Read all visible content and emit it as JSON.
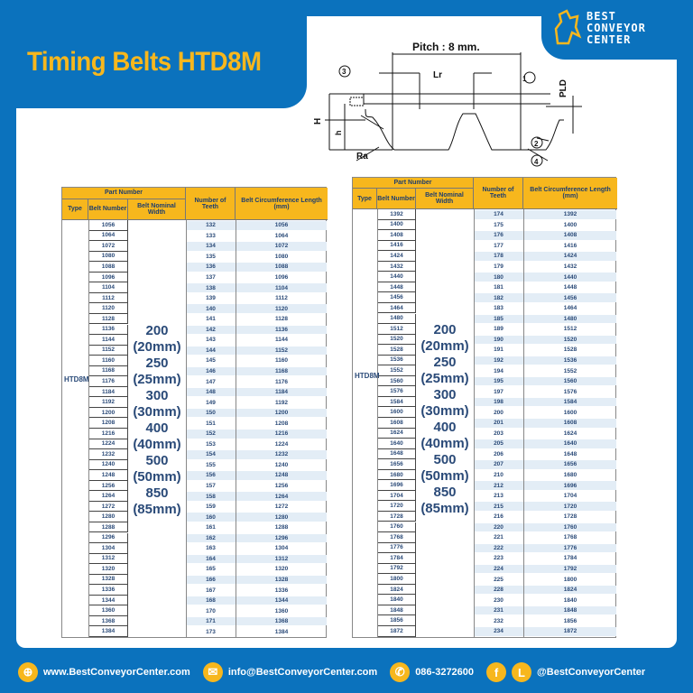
{
  "title": "Timing Belts HTD8M",
  "logo": {
    "line1": "BEST",
    "line2": "CONVEYOR",
    "line3": "CENTER"
  },
  "diagram": {
    "pitch": "Pitch : 8 mm.",
    "lr": "Lr",
    "pld": "PLD",
    "h_upper": "H",
    "h_lower": "h",
    "ra": "Ra",
    "callouts": [
      "1",
      "2",
      "3",
      "4"
    ]
  },
  "table_headers": {
    "part_number": "Part Number",
    "type": "Type",
    "belt_number": "Belt Number",
    "nominal_width": "Belt Nominal Width",
    "teeth": "Number of Teeth",
    "length": "Belt Circumference Length (mm)"
  },
  "type": "HTD8M",
  "widths": [
    "200",
    "(20mm)",
    "250",
    "(25mm)",
    "300",
    "(30mm)",
    "400",
    "(40mm)",
    "500",
    "(50mm)",
    "850",
    "(85mm)"
  ],
  "left_rows": [
    [
      "1056",
      "132",
      "1056"
    ],
    [
      "1064",
      "133",
      "1064"
    ],
    [
      "1072",
      "134",
      "1072"
    ],
    [
      "1080",
      "135",
      "1080"
    ],
    [
      "1088",
      "136",
      "1088"
    ],
    [
      "1096",
      "137",
      "1096"
    ],
    [
      "1104",
      "138",
      "1104"
    ],
    [
      "1112",
      "139",
      "1112"
    ],
    [
      "1120",
      "140",
      "1120"
    ],
    [
      "1128",
      "141",
      "1128"
    ],
    [
      "1136",
      "142",
      "1136"
    ],
    [
      "1144",
      "143",
      "1144"
    ],
    [
      "1152",
      "144",
      "1152"
    ],
    [
      "1160",
      "145",
      "1160"
    ],
    [
      "1168",
      "146",
      "1168"
    ],
    [
      "1176",
      "147",
      "1176"
    ],
    [
      "1184",
      "148",
      "1184"
    ],
    [
      "1192",
      "149",
      "1192"
    ],
    [
      "1200",
      "150",
      "1200"
    ],
    [
      "1208",
      "151",
      "1208"
    ],
    [
      "1216",
      "152",
      "1216"
    ],
    [
      "1224",
      "153",
      "1224"
    ],
    [
      "1232",
      "154",
      "1232"
    ],
    [
      "1240",
      "155",
      "1240"
    ],
    [
      "1248",
      "156",
      "1248"
    ],
    [
      "1256",
      "157",
      "1256"
    ],
    [
      "1264",
      "158",
      "1264"
    ],
    [
      "1272",
      "159",
      "1272"
    ],
    [
      "1280",
      "160",
      "1280"
    ],
    [
      "1288",
      "161",
      "1288"
    ],
    [
      "1296",
      "162",
      "1296"
    ],
    [
      "1304",
      "163",
      "1304"
    ],
    [
      "1312",
      "164",
      "1312"
    ],
    [
      "1320",
      "165",
      "1320"
    ],
    [
      "1328",
      "166",
      "1328"
    ],
    [
      "1336",
      "167",
      "1336"
    ],
    [
      "1344",
      "168",
      "1344"
    ],
    [
      "1360",
      "170",
      "1360"
    ],
    [
      "1368",
      "171",
      "1368"
    ],
    [
      "1384",
      "173",
      "1384"
    ]
  ],
  "right_rows": [
    [
      "1392",
      "174",
      "1392"
    ],
    [
      "1400",
      "175",
      "1400"
    ],
    [
      "1408",
      "176",
      "1408"
    ],
    [
      "1416",
      "177",
      "1416"
    ],
    [
      "1424",
      "178",
      "1424"
    ],
    [
      "1432",
      "179",
      "1432"
    ],
    [
      "1440",
      "180",
      "1440"
    ],
    [
      "1448",
      "181",
      "1448"
    ],
    [
      "1456",
      "182",
      "1456"
    ],
    [
      "1464",
      "183",
      "1464"
    ],
    [
      "1480",
      "185",
      "1480"
    ],
    [
      "1512",
      "189",
      "1512"
    ],
    [
      "1520",
      "190",
      "1520"
    ],
    [
      "1528",
      "191",
      "1528"
    ],
    [
      "1536",
      "192",
      "1536"
    ],
    [
      "1552",
      "194",
      "1552"
    ],
    [
      "1560",
      "195",
      "1560"
    ],
    [
      "1576",
      "197",
      "1576"
    ],
    [
      "1584",
      "198",
      "1584"
    ],
    [
      "1600",
      "200",
      "1600"
    ],
    [
      "1608",
      "201",
      "1608"
    ],
    [
      "1624",
      "203",
      "1624"
    ],
    [
      "1640",
      "205",
      "1640"
    ],
    [
      "1648",
      "206",
      "1648"
    ],
    [
      "1656",
      "207",
      "1656"
    ],
    [
      "1680",
      "210",
      "1680"
    ],
    [
      "1696",
      "212",
      "1696"
    ],
    [
      "1704",
      "213",
      "1704"
    ],
    [
      "1720",
      "215",
      "1720"
    ],
    [
      "1728",
      "216",
      "1728"
    ],
    [
      "1760",
      "220",
      "1760"
    ],
    [
      "1768",
      "221",
      "1768"
    ],
    [
      "1776",
      "222",
      "1776"
    ],
    [
      "1784",
      "223",
      "1784"
    ],
    [
      "1792",
      "224",
      "1792"
    ],
    [
      "1800",
      "225",
      "1800"
    ],
    [
      "1824",
      "228",
      "1824"
    ],
    [
      "1840",
      "230",
      "1840"
    ],
    [
      "1848",
      "231",
      "1848"
    ],
    [
      "1856",
      "232",
      "1856"
    ],
    [
      "1872",
      "234",
      "1872"
    ]
  ],
  "footer": {
    "website": "www.BestConveyorCenter.com",
    "email": "info@BestConveyorCenter.com",
    "phone": "086-3272600",
    "social": "@BestConveyorCenter",
    "line_glyph": "L",
    "facebook_glyph": "f"
  },
  "colors": {
    "brand_blue": "#0b72bd",
    "accent_yellow": "#f7b71d",
    "text_blue": "#2a4a78"
  }
}
